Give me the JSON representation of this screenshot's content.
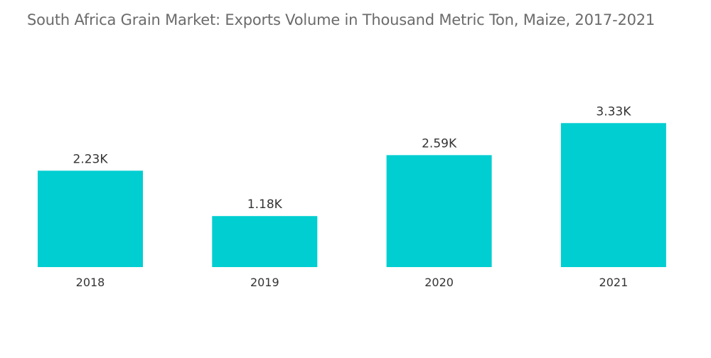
{
  "chart_data": {
    "type": "bar",
    "title": "South Africa Grain Market: Exports Volume in Thousand Metric Ton, Maize,  2017-2021",
    "categories": [
      "2018",
      "2019",
      "2020",
      "2021"
    ],
    "values": [
      2.23,
      1.18,
      2.59,
      3.33
    ],
    "data_labels": [
      "2.23K",
      "1.18K",
      "2.59K",
      "3.33K"
    ],
    "xlabel": "",
    "ylabel": "",
    "ylim": [
      0,
      3.5
    ],
    "grid": false,
    "legend": "none",
    "bar_color": "#00ced1"
  }
}
